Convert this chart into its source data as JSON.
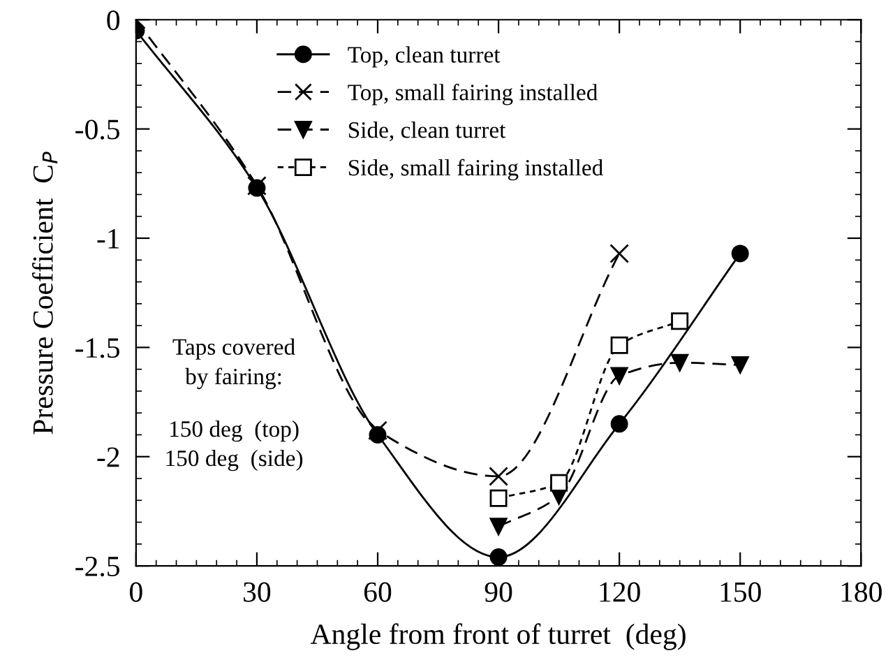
{
  "chart_data": {
    "type": "line",
    "xlabel": "Angle from front of turret  (deg)",
    "ylabel": "Pressure Coefficient  C$_{P}$",
    "xlim": [
      0,
      180
    ],
    "xticks": [
      0,
      30,
      60,
      90,
      120,
      150,
      180
    ],
    "ylim": [
      -2.5,
      0
    ],
    "yticks": [
      {
        "value": -2.5,
        "label": "-2.5"
      },
      {
        "value": -2,
        "label": "-2"
      },
      {
        "value": -1.5,
        "label": "-1.5"
      },
      {
        "value": -1,
        "label": "-1"
      },
      {
        "value": -0.5,
        "label": "-0.5"
      },
      0
    ],
    "grid": false,
    "legend": "top",
    "series": [
      {
        "name": "Top, clean turret",
        "color": "#000000",
        "marker": "circle",
        "line_style": "solid",
        "x": [
          0,
          30,
          60,
          90,
          120,
          150
        ],
        "values": [
          -0.05,
          -0.77,
          -1.9,
          -2.46,
          -1.85,
          -1.07
        ]
      },
      {
        "name": "Top, small fairing installed",
        "color": "#000000",
        "marker": "cross",
        "line_style": "dashed",
        "x": [
          0,
          30,
          60,
          90,
          120
        ],
        "values": [
          0,
          -0.76,
          -1.88,
          -2.09,
          -1.07
        ]
      },
      {
        "name": "Side, clean turret",
        "color": "#000000",
        "marker": "triangle",
        "line_style": "dashed",
        "x": [
          90,
          105,
          120,
          135,
          150
        ],
        "values": [
          -2.32,
          -2.18,
          -1.63,
          -1.57,
          -1.58
        ]
      },
      {
        "name": "Side, small fairing installed",
        "color": "#000000",
        "marker": "square",
        "line_style": "dotted",
        "x": [
          90,
          105,
          120,
          135
        ],
        "values": [
          -2.19,
          -2.12,
          -1.49,
          -1.38
        ]
      }
    ],
    "annotations": [
      "Taps covered\nby fairing:",
      "150 deg  (top)\n150 deg  (side)"
    ]
  }
}
